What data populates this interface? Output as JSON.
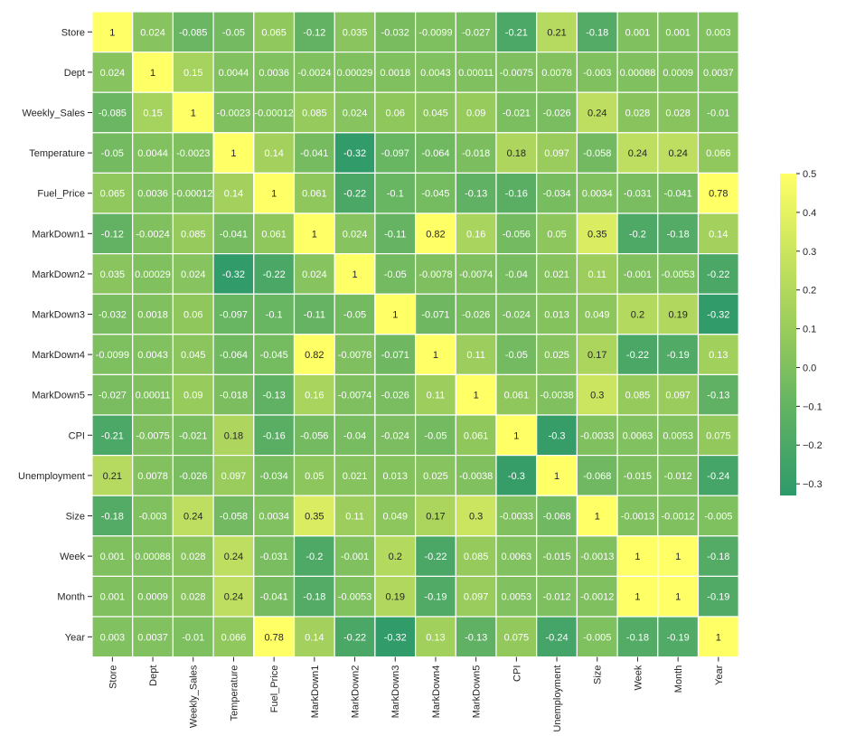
{
  "chart_data": {
    "type": "heatmap",
    "title": "",
    "xlabel": "",
    "ylabel": "",
    "variables": [
      "Store",
      "Dept",
      "Weekly_Sales",
      "Temperature",
      "Fuel_Price",
      "MarkDown1",
      "MarkDown2",
      "MarkDown3",
      "MarkDown4",
      "MarkDown5",
      "CPI",
      "Unemployment",
      "Size",
      "Week",
      "Month",
      "Year"
    ],
    "labels": [
      [
        "1",
        "0.024",
        "-0.085",
        "-0.05",
        "0.065",
        "-0.12",
        "0.035",
        "-0.032",
        "-0.0099",
        "-0.027",
        "-0.21",
        "0.21",
        "-0.18",
        "0.001",
        "0.001",
        "0.003"
      ],
      [
        "0.024",
        "1",
        "0.15",
        "0.0044",
        "0.0036",
        "-0.0024",
        "0.00029",
        "0.0018",
        "0.0043",
        "0.00011",
        "-0.0075",
        "0.0078",
        "-0.003",
        "0.00088",
        "0.0009",
        "0.0037"
      ],
      [
        "-0.085",
        "0.15",
        "1",
        "-0.0023",
        "-0.00012",
        "0.085",
        "0.024",
        "0.06",
        "0.045",
        "0.09",
        "-0.021",
        "-0.026",
        "0.24",
        "0.028",
        "0.028",
        "-0.01"
      ],
      [
        "-0.05",
        "0.0044",
        "-0.0023",
        "1",
        "0.14",
        "-0.041",
        "-0.32",
        "-0.097",
        "-0.064",
        "-0.018",
        "0.18",
        "0.097",
        "-0.058",
        "0.24",
        "0.24",
        "0.066"
      ],
      [
        "0.065",
        "0.0036",
        "-0.00012",
        "0.14",
        "1",
        "0.061",
        "-0.22",
        "-0.1",
        "-0.045",
        "-0.13",
        "-0.16",
        "-0.034",
        "0.0034",
        "-0.031",
        "-0.041",
        "0.78"
      ],
      [
        "-0.12",
        "-0.0024",
        "0.085",
        "-0.041",
        "0.061",
        "1",
        "0.024",
        "-0.11",
        "0.82",
        "0.16",
        "-0.056",
        "0.05",
        "0.35",
        "-0.2",
        "-0.18",
        "0.14"
      ],
      [
        "0.035",
        "0.00029",
        "0.024",
        "-0.32",
        "-0.22",
        "0.024",
        "1",
        "-0.05",
        "-0.0078",
        "-0.0074",
        "-0.04",
        "0.021",
        "0.11",
        "-0.001",
        "-0.0053",
        "-0.22"
      ],
      [
        "-0.032",
        "0.0018",
        "0.06",
        "-0.097",
        "-0.1",
        "-0.11",
        "-0.05",
        "1",
        "-0.071",
        "-0.026",
        "-0.024",
        "0.013",
        "0.049",
        "0.2",
        "0.19",
        "-0.32"
      ],
      [
        "-0.0099",
        "0.0043",
        "0.045",
        "-0.064",
        "-0.045",
        "0.82",
        "-0.0078",
        "-0.071",
        "1",
        "0.11",
        "-0.05",
        "0.025",
        "0.17",
        "-0.22",
        "-0.19",
        "0.13"
      ],
      [
        "-0.027",
        "0.00011",
        "0.09",
        "-0.018",
        "-0.13",
        "0.16",
        "-0.0074",
        "-0.026",
        "0.11",
        "1",
        "0.061",
        "-0.0038",
        "0.3",
        "0.085",
        "0.097",
        "-0.13"
      ],
      [
        "-0.21",
        "-0.0075",
        "-0.021",
        "0.18",
        "-0.16",
        "-0.056",
        "-0.04",
        "-0.024",
        "-0.05",
        "0.061",
        "1",
        "-0.3",
        "-0.0033",
        "0.0063",
        "0.0053",
        "0.075"
      ],
      [
        "0.21",
        "0.0078",
        "-0.026",
        "0.097",
        "-0.034",
        "0.05",
        "0.021",
        "0.013",
        "0.025",
        "-0.0038",
        "-0.3",
        "1",
        "-0.068",
        "-0.015",
        "-0.012",
        "-0.24"
      ],
      [
        "-0.18",
        "-0.003",
        "0.24",
        "-0.058",
        "0.0034",
        "0.35",
        "0.11",
        "0.049",
        "0.17",
        "0.3",
        "-0.0033",
        "-0.068",
        "1",
        "-0.0013",
        "-0.0012",
        "-0.005"
      ],
      [
        "0.001",
        "0.00088",
        "0.028",
        "0.24",
        "-0.031",
        "-0.2",
        "-0.001",
        "0.2",
        "-0.22",
        "0.085",
        "0.0063",
        "-0.015",
        "-0.0013",
        "1",
        "1",
        "-0.18"
      ],
      [
        "0.001",
        "0.0009",
        "0.028",
        "0.24",
        "-0.041",
        "-0.18",
        "-0.0053",
        "0.19",
        "-0.19",
        "0.097",
        "0.0053",
        "-0.012",
        "-0.0012",
        "1",
        "1",
        "-0.19"
      ],
      [
        "0.003",
        "0.0037",
        "-0.01",
        "0.066",
        "0.78",
        "0.14",
        "-0.22",
        "-0.32",
        "0.13",
        "-0.13",
        "0.075",
        "-0.24",
        "-0.005",
        "-0.18",
        "-0.19",
        "1"
      ]
    ],
    "vmin": -0.33,
    "vmax": 0.5,
    "colorbar_ticks": [
      "0.5",
      "0.4",
      "0.3",
      "0.2",
      "0.1",
      "0.0",
      "−0.1",
      "−0.2",
      "−0.3"
    ],
    "colormap": {
      "low": "#2e9a6a",
      "mid": "#96ca5c",
      "high": "#ffff66"
    },
    "cell_border_color": "#ffffff",
    "grid": false,
    "legend": "colorbar-right"
  }
}
